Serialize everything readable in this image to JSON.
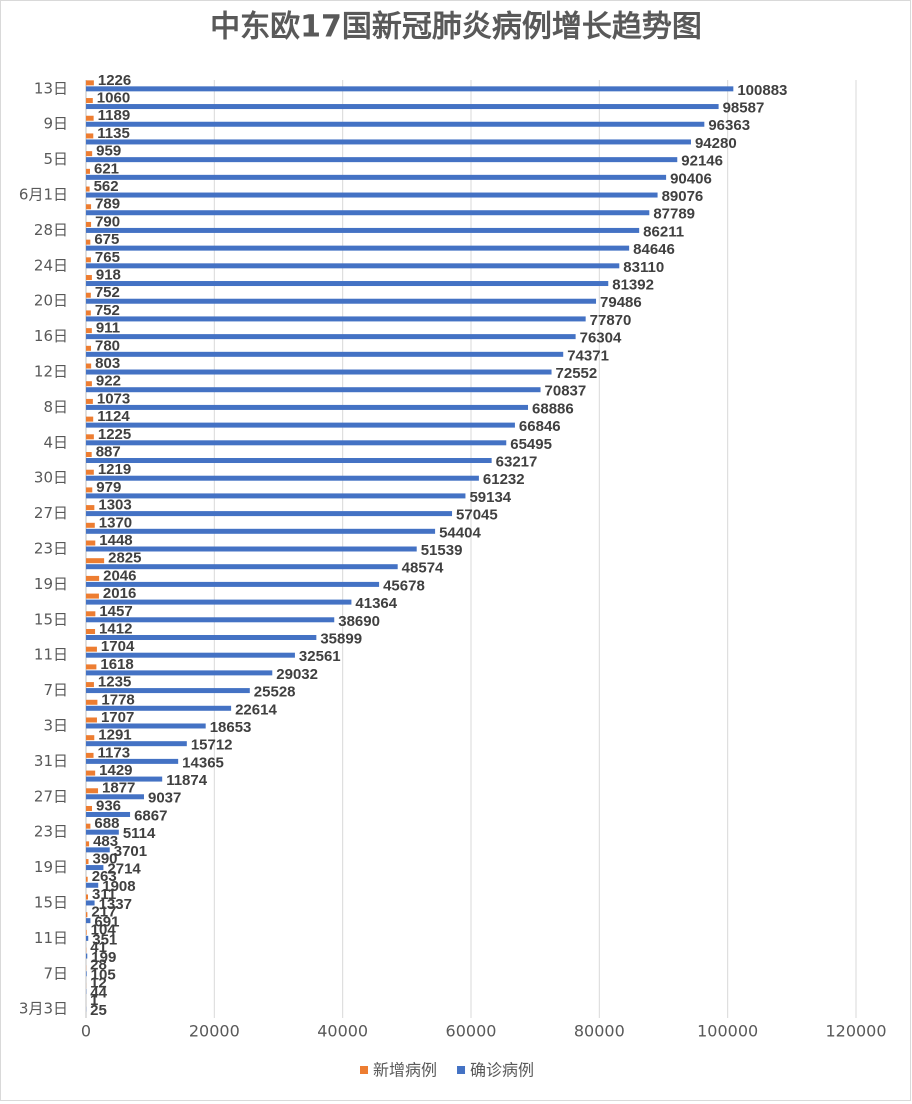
{
  "chart_data": {
    "type": "hbar",
    "title": "中东欧17国新冠肺炎病例增长趋势图",
    "categories": [
      "3月3日",
      null,
      "7日",
      null,
      "11日",
      null,
      "15日",
      null,
      "19日",
      null,
      "23日",
      null,
      "27日",
      null,
      "31日",
      null,
      "3日",
      null,
      "7日",
      null,
      "11日",
      null,
      "15日",
      null,
      "19日",
      null,
      "23日",
      null,
      "27日",
      null,
      "30日",
      null,
      "4日",
      null,
      "8日",
      null,
      "12日",
      null,
      "16日",
      null,
      "20日",
      null,
      "24日",
      null,
      "28日",
      null,
      "6月1日",
      null,
      "5日",
      null,
      "9日",
      null,
      "13日"
    ],
    "series": [
      {
        "name": "新增病例",
        "color": "#ed7d31",
        "values": [
          1,
          12,
          28,
          41,
          104,
          217,
          311,
          263,
          390,
          483,
          688,
          936,
          1877,
          1429,
          1173,
          1291,
          1707,
          1778,
          1235,
          1618,
          1704,
          1412,
          1457,
          2016,
          2046,
          2825,
          1448,
          1370,
          1303,
          979,
          1219,
          887,
          1225,
          1124,
          1073,
          922,
          803,
          780,
          911,
          752,
          752,
          918,
          765,
          675,
          790,
          789,
          562,
          621,
          959,
          1135,
          1189,
          1060,
          1226
        ]
      },
      {
        "name": "确诊病例",
        "color": "#4472c4",
        "values": [
          25,
          44,
          105,
          199,
          351,
          691,
          1337,
          1908,
          2714,
          3701,
          5114,
          6867,
          9037,
          11874,
          14365,
          15712,
          18653,
          22614,
          25528,
          29032,
          32561,
          35899,
          38690,
          41364,
          45678,
          48574,
          51539,
          54404,
          57045,
          59134,
          61232,
          63217,
          65495,
          66846,
          68886,
          70837,
          72552,
          74371,
          76304,
          77870,
          79486,
          81392,
          83110,
          84646,
          86211,
          87789,
          89076,
          90406,
          92146,
          94280,
          96363,
          98587,
          100883
        ]
      }
    ],
    "xlim": [
      0,
      120000
    ],
    "xticks": [
      0,
      20000,
      40000,
      60000,
      80000,
      100000,
      120000
    ],
    "grid": true,
    "legend": "bottom"
  }
}
